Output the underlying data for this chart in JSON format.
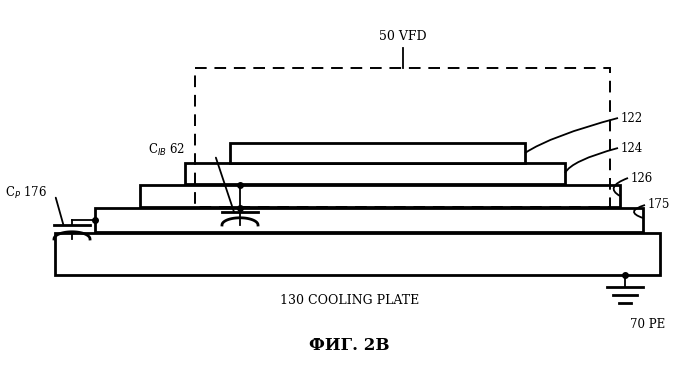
{
  "title": "ФИГ. 2В",
  "background_color": "#ffffff",
  "fig_width": 6.99,
  "fig_height": 3.71,
  "dpi": 100,
  "labels": {
    "VFD": "50 VFD",
    "CIB": "C$_{IB}$ 62",
    "CP": "C$_{P}$ 176",
    "layer122": "122",
    "layer124": "124",
    "layer126": "126",
    "layer175": "175",
    "cooling": "130 COOLING PLATE",
    "PE": "70 PE"
  },
  "lw": 1.3,
  "lw_thick": 2.0
}
